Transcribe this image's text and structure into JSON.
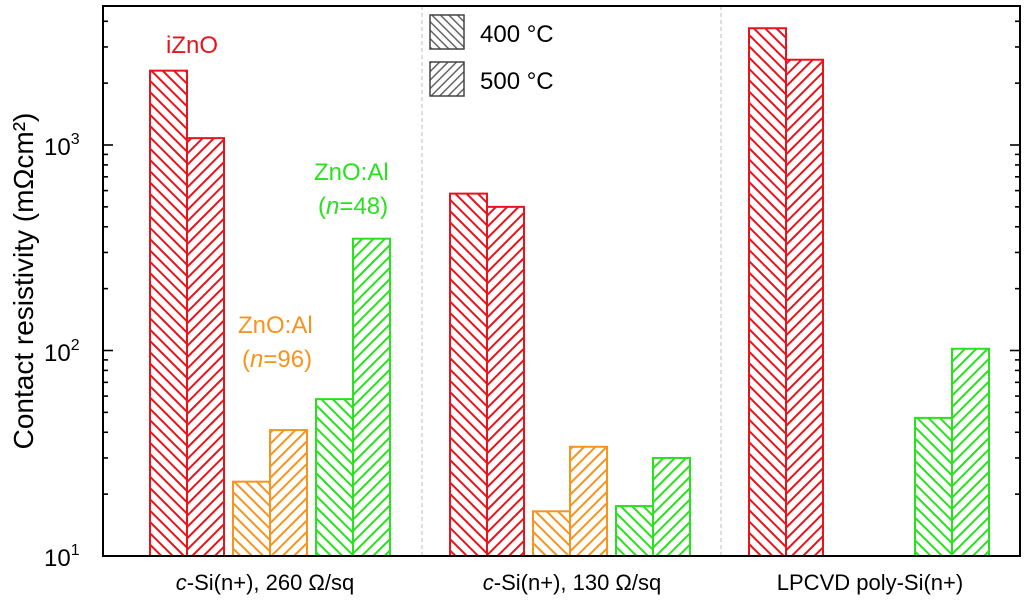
{
  "chart_data": {
    "type": "bar",
    "ylabel": "Contact resistivity (mΩcm²)",
    "yscale": "log",
    "ylim": [
      10,
      5000
    ],
    "yticks": [
      {
        "value": 10,
        "base": "10",
        "exp": "1"
      },
      {
        "value": 100,
        "base": "10",
        "exp": "2"
      },
      {
        "value": 1000,
        "base": "10",
        "exp": "3"
      }
    ],
    "legend": {
      "placement": "top-center",
      "entries": [
        {
          "label": "400 °C",
          "pattern": "backslash"
        },
        {
          "label": "500 °C",
          "pattern": "slash"
        }
      ]
    },
    "groups": [
      {
        "label_prefix": "c",
        "label_rest": "-Si(n+), 260 Ω/sq"
      },
      {
        "label_prefix": "c",
        "label_rest": "-Si(n+), 130 Ω/sq"
      },
      {
        "label_prefix": "",
        "label_rest": "LPCVD poly-Si(n+)"
      }
    ],
    "series": [
      {
        "material": "iZnO",
        "color": "#e8141c",
        "values_400": [
          2300,
          580,
          3700
        ],
        "values_500": [
          1080,
          500,
          2600
        ]
      },
      {
        "material": "ZnO:Al (n=96)",
        "color": "#f7941d",
        "values_400": [
          23,
          16.5,
          null
        ],
        "values_500": [
          41,
          34,
          null
        ]
      },
      {
        "material": "ZnO:Al (n=48)",
        "color": "#27e21c",
        "values_400": [
          58,
          17.5,
          47
        ],
        "values_500": [
          350,
          30,
          102
        ]
      }
    ],
    "annotations": [
      {
        "text": "iZnO",
        "color": "#e8141c"
      },
      {
        "text_line1": "ZnO:Al",
        "text_line2_pre": "(",
        "text_line2_italic": "n",
        "text_line2_post": "=96)",
        "color": "#f7941d"
      },
      {
        "text_line1": "ZnO:Al",
        "text_line2_pre": "(",
        "text_line2_italic": "n",
        "text_line2_post": "=48)",
        "color": "#27e21c"
      }
    ]
  }
}
